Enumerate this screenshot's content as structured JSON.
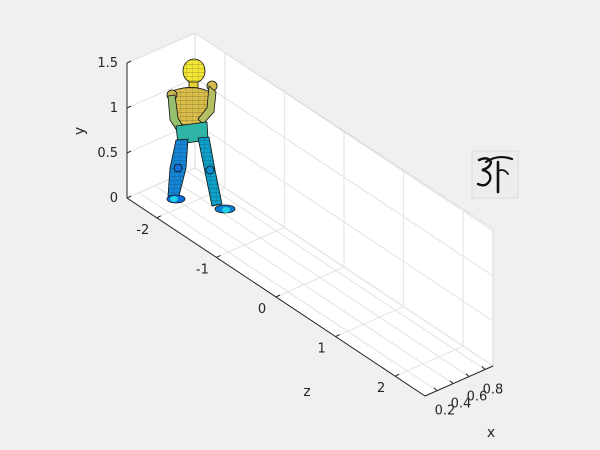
{
  "chart_data": {
    "type": "3d-surface",
    "title": "",
    "axes": {
      "x": {
        "label": "x",
        "ticks": [
          "0.2",
          "0.4",
          "0.6",
          "0.8"
        ]
      },
      "y": {
        "label": "y",
        "ticks": [
          "0",
          "0.5",
          "1",
          "1.5"
        ]
      },
      "z": {
        "label": "z",
        "ticks": [
          "-2",
          "-1",
          "0",
          "1",
          "2"
        ]
      }
    },
    "grid": true,
    "colormap": "parula",
    "colormap_stops": [
      "#352a87",
      "#0f5cdd",
      "#1481d6",
      "#06a4ca",
      "#2eb7a4",
      "#87bf77",
      "#d1bb59",
      "#fec832",
      "#f9fb0e"
    ],
    "surface": "humanoid figure (mesh surface)",
    "inset_image": "handwritten character thumbnail"
  }
}
